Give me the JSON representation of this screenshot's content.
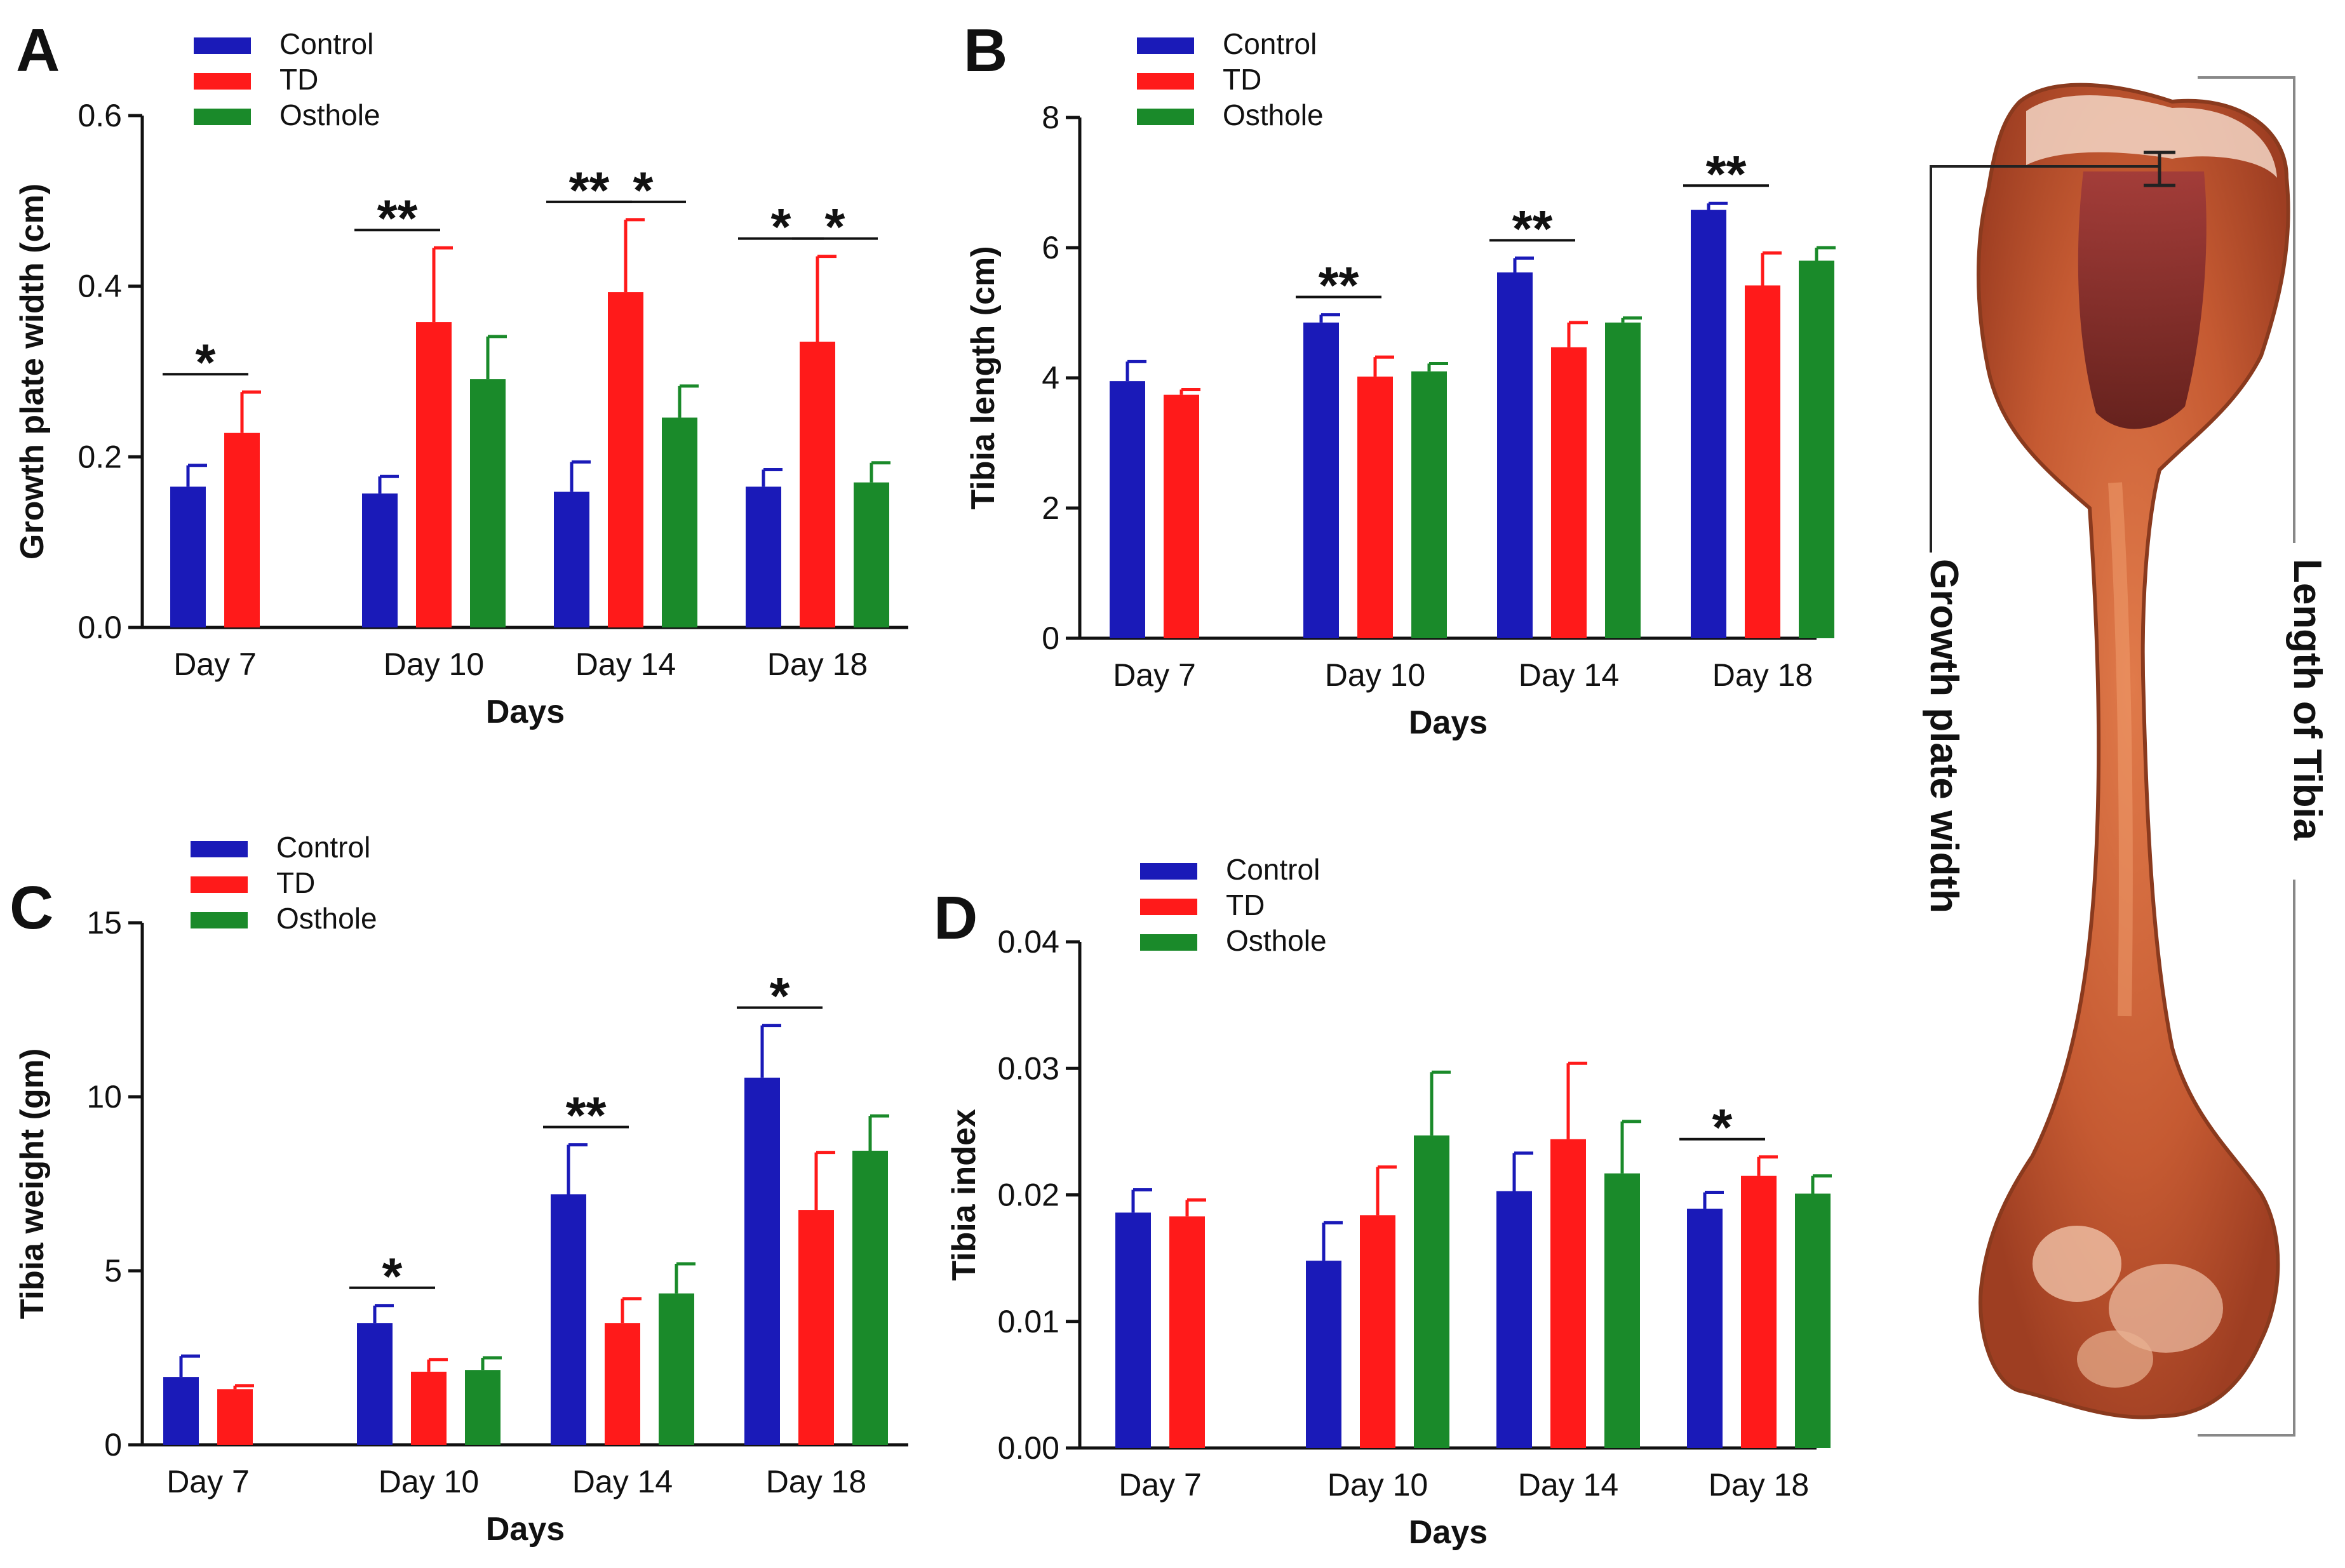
{
  "colors": {
    "Control": "#1a1ab8",
    "TD": "#ff1a1a",
    "Osthole": "#1a8a2a"
  },
  "legend_labels": [
    "Control",
    "TD",
    "Osthole"
  ],
  "bone_labels": {
    "growth": "Growth plate width",
    "length": "Length of Tibia"
  },
  "chart_data": [
    {
      "panel": "A",
      "type": "bar",
      "categories": [
        "Day 7",
        "Day 10",
        "Day 14",
        "Day 18"
      ],
      "xlabel": "Days",
      "ylabel": "Growth plate width (cm)",
      "ylim": [
        0,
        0.6
      ],
      "yticks": [
        "0.0",
        "0.2",
        "0.4",
        "0.6"
      ],
      "series": [
        {
          "name": "Control",
          "values": [
            0.165,
            0.157,
            0.159,
            0.165
          ],
          "errors": [
            0.025,
            0.02,
            0.035,
            0.02
          ]
        },
        {
          "name": "TD",
          "values": [
            0.228,
            0.358,
            0.393,
            0.335
          ],
          "errors": [
            0.048,
            0.087,
            0.085,
            0.1
          ]
        },
        {
          "name": "Osthole",
          "values": [
            null,
            0.291,
            0.246,
            0.17
          ],
          "errors": [
            null,
            0.05,
            0.037,
            0.023
          ]
        }
      ],
      "annotations": [
        {
          "text": "*",
          "category": 0,
          "from": 0,
          "to": 1
        },
        {
          "text": "**",
          "category": 1,
          "from": 0,
          "to": 1
        },
        {
          "text": "**",
          "category": 2,
          "from": 0,
          "to": 1
        },
        {
          "text": "*",
          "category": 2,
          "from": 1,
          "to": 2
        },
        {
          "text": "*",
          "category": 3,
          "from": 0,
          "to": 1
        },
        {
          "text": "*",
          "category": 3,
          "from": 1,
          "to": 2
        }
      ]
    },
    {
      "panel": "B",
      "type": "bar",
      "categories": [
        "Day 7",
        "Day 10",
        "Day 14",
        "Day 18"
      ],
      "xlabel": "Days",
      "ylabel": "Tibia length (cm)",
      "ylim": [
        0,
        8
      ],
      "yticks": [
        "0",
        "2",
        "4",
        "6",
        "8"
      ],
      "series": [
        {
          "name": "Control",
          "values": [
            3.95,
            4.85,
            5.62,
            6.58
          ],
          "errors": [
            0.3,
            0.12,
            0.22,
            0.1
          ]
        },
        {
          "name": "TD",
          "values": [
            3.74,
            4.02,
            4.47,
            5.42
          ],
          "errors": [
            0.08,
            0.3,
            0.38,
            0.5
          ]
        },
        {
          "name": "Osthole",
          "values": [
            null,
            4.1,
            4.85,
            5.8
          ],
          "errors": [
            null,
            0.12,
            0.07,
            0.2
          ]
        }
      ],
      "annotations": [
        {
          "text": "**",
          "category": 1,
          "from": 0,
          "to": 1
        },
        {
          "text": "**",
          "category": 2,
          "from": 0,
          "to": 1
        },
        {
          "text": "**",
          "category": 3,
          "from": 0,
          "to": 1
        }
      ]
    },
    {
      "panel": "C",
      "type": "bar",
      "categories": [
        "Day 7",
        "Day 10",
        "Day 14",
        "Day 18"
      ],
      "xlabel": "Days",
      "ylabel": "Tibia weight (gm)",
      "ylim": [
        0,
        15
      ],
      "yticks": [
        "0",
        "5",
        "10",
        "15"
      ],
      "series": [
        {
          "name": "Control",
          "values": [
            1.95,
            3.5,
            7.2,
            10.55
          ],
          "errors": [
            0.6,
            0.5,
            1.42,
            1.5
          ]
        },
        {
          "name": "TD",
          "values": [
            1.6,
            2.1,
            3.5,
            6.75
          ],
          "errors": [
            0.1,
            0.35,
            0.7,
            1.65
          ]
        },
        {
          "name": "Osthole",
          "values": [
            null,
            2.15,
            4.35,
            8.45
          ],
          "errors": [
            null,
            0.35,
            0.85,
            1.0
          ]
        }
      ],
      "annotations": [
        {
          "text": "*",
          "category": 1,
          "from": 0,
          "to": 1
        },
        {
          "text": "**",
          "category": 2,
          "from": 0,
          "to": 1
        },
        {
          "text": "*",
          "category": 3,
          "from": 0,
          "to": 1
        }
      ]
    },
    {
      "panel": "D",
      "type": "bar",
      "categories": [
        "Day 7",
        "Day 10",
        "Day 14",
        "Day 18"
      ],
      "xlabel": "Days",
      "ylabel": "Tibia index",
      "ylim": [
        0,
        0.04
      ],
      "yticks": [
        "0.00",
        "0.01",
        "0.02",
        "0.03",
        "0.04"
      ],
      "series": [
        {
          "name": "Control",
          "values": [
            0.0186,
            0.0148,
            0.0203,
            0.0189
          ],
          "errors": [
            0.0018,
            0.003,
            0.003,
            0.0013
          ]
        },
        {
          "name": "TD",
          "values": [
            0.0183,
            0.0184,
            0.0244,
            0.0215
          ],
          "errors": [
            0.0013,
            0.0038,
            0.006,
            0.0015
          ]
        },
        {
          "name": "Osthole",
          "values": [
            null,
            0.0247,
            0.0217,
            0.0201
          ],
          "errors": [
            null,
            0.005,
            0.0041,
            0.0014
          ]
        }
      ],
      "annotations": [
        {
          "text": "*",
          "category": 3,
          "from": 0,
          "to": 1
        }
      ]
    }
  ]
}
